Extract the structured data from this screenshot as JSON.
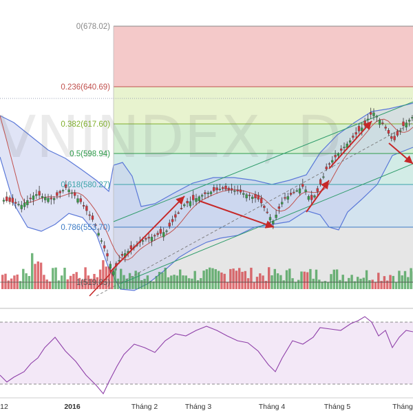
{
  "chart_data": {
    "type": "candlestick",
    "watermark": "VNINDEX, D",
    "colors": {
      "up": "#3a9a4a",
      "down": "#d0363c",
      "bollinger_line": "#5a78d8",
      "bollinger_fill": "#c7cdef",
      "ma": "#c0504d",
      "rsi_line": "#8e3fa8",
      "rsi_fill": "#efe0f4",
      "arrow": "#c62828",
      "channel": "#2e9b6a"
    },
    "x_axis": {
      "tick_labels": [
        "12",
        "2016",
        "Tháng 2",
        "Tháng 3",
        "Tháng 4",
        "Tháng 5",
        "Tháng"
      ]
    },
    "fibonacci": [
      {
        "level": "0",
        "price": "678.02",
        "label": "0(678.02)",
        "color": "#888888",
        "zone_color": "#f4c9c9"
      },
      {
        "level": "0.236",
        "price": "640.69",
        "label": "0.236(640.69)",
        "color": "#c0504d",
        "zone_color": "#e8f3cf"
      },
      {
        "level": "0.382",
        "price": "617.60",
        "label": "0.382(617.60)",
        "color": "#7fae2b",
        "zone_color": "#d5efd3"
      },
      {
        "level": "0.5",
        "price": "598.94",
        "label": "0.5(598.94)",
        "color": "#2e9b4a",
        "zone_color": "#d2ece6"
      },
      {
        "level": "0.618",
        "price": "580.27",
        "label": "0.618(580.27)",
        "color": "#3aa3a8",
        "zone_color": "#d3e3ef"
      },
      {
        "level": "0.786",
        "price": "553.70",
        "label": "0.786(553.70)",
        "color": "#3b7ac4",
        "zone_color": "#e3e3e3"
      },
      {
        "level": "1",
        "price": "519.85",
        "label": "1(519.85)",
        "color": "#555555",
        "zone_color": ""
      }
    ],
    "annotations": [
      "red trend arrows",
      "rising trend channel",
      "dashed channel midline"
    ]
  }
}
